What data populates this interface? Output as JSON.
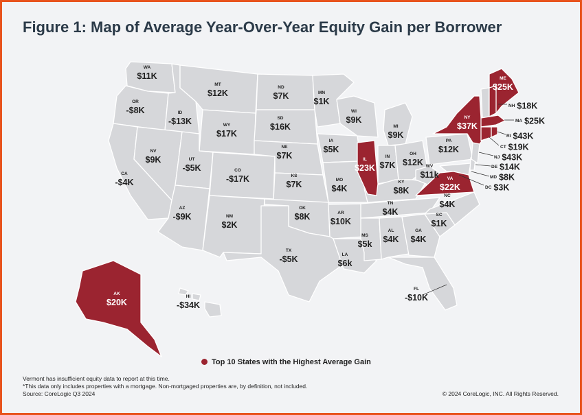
{
  "title": "Figure 1: Map of Average Year-Over-Year Equity Gain per Borrower",
  "colors": {
    "frame": "#e8531d",
    "state_fill": "#d6d7da",
    "highlight_fill": "#9b2430",
    "state_border": "#ffffff"
  },
  "legend": {
    "label": "Top 10 States with the Highest Average Gain"
  },
  "states": {
    "WA": {
      "abbr": "WA",
      "value": "$11K"
    },
    "OR": {
      "abbr": "OR",
      "value": "-$8K"
    },
    "CA": {
      "abbr": "CA",
      "value": "-$4K"
    },
    "ID": {
      "abbr": "ID",
      "value": "-$13K"
    },
    "NV": {
      "abbr": "NV",
      "value": "$9K"
    },
    "MT": {
      "abbr": "MT",
      "value": "$12K"
    },
    "WY": {
      "abbr": "WY",
      "value": "$17K"
    },
    "UT": {
      "abbr": "UT",
      "value": "-$5K"
    },
    "AZ": {
      "abbr": "AZ",
      "value": "-$9K"
    },
    "CO": {
      "abbr": "CO",
      "value": "-$17K"
    },
    "NM": {
      "abbr": "NM",
      "value": "$2K"
    },
    "ND": {
      "abbr": "ND",
      "value": "$7K"
    },
    "SD": {
      "abbr": "SD",
      "value": "$16K"
    },
    "NE": {
      "abbr": "NE",
      "value": "$7K"
    },
    "KS": {
      "abbr": "KS",
      "value": "$7K"
    },
    "OK": {
      "abbr": "OK",
      "value": "$8K"
    },
    "TX": {
      "abbr": "TX",
      "value": "-$5K"
    },
    "MN": {
      "abbr": "MN",
      "value": "$1K"
    },
    "IA": {
      "abbr": "IA",
      "value": "$5K"
    },
    "MO": {
      "abbr": "MO",
      "value": "$4K"
    },
    "AR": {
      "abbr": "AR",
      "value": "$10K"
    },
    "LA": {
      "abbr": "LA",
      "value": "$6k"
    },
    "WI": {
      "abbr": "WI",
      "value": "$9K"
    },
    "IL": {
      "abbr": "IL",
      "value": "$23K"
    },
    "MI": {
      "abbr": "MI",
      "value": "$9K"
    },
    "IN": {
      "abbr": "IN",
      "value": "$7K"
    },
    "OH": {
      "abbr": "OH",
      "value": "$12K"
    },
    "KY": {
      "abbr": "KY",
      "value": "$8K"
    },
    "TN": {
      "abbr": "TN",
      "value": "$4K"
    },
    "MS": {
      "abbr": "MS",
      "value": "$5k"
    },
    "AL": {
      "abbr": "AL",
      "value": "$4K"
    },
    "GA": {
      "abbr": "GA",
      "value": "$4K"
    },
    "FL": {
      "abbr": "FL",
      "value": "-$10K"
    },
    "SC": {
      "abbr": "SC",
      "value": "$1K"
    },
    "NC": {
      "abbr": "NC",
      "value": "$4K"
    },
    "VA": {
      "abbr": "VA",
      "value": "$22K"
    },
    "WV": {
      "abbr": "WV",
      "value": "$11k"
    },
    "PA": {
      "abbr": "PA",
      "value": "$12K"
    },
    "NY": {
      "abbr": "NY",
      "value": "$37K"
    },
    "ME": {
      "abbr": "ME",
      "value": "$25K"
    },
    "NH": {
      "abbr": "NH",
      "value": "$18K"
    },
    "MA": {
      "abbr": "MA",
      "value": "$25K"
    },
    "RI": {
      "abbr": "RI",
      "value": "$43K"
    },
    "CT": {
      "abbr": "CT",
      "value": "$19K"
    },
    "NJ": {
      "abbr": "NJ",
      "value": "$43K"
    },
    "DE": {
      "abbr": "DE",
      "value": "$14K"
    },
    "MD": {
      "abbr": "MD",
      "value": "$8K"
    },
    "DC": {
      "abbr": "DC",
      "value": "$3K"
    },
    "AK": {
      "abbr": "AK",
      "value": "$20K"
    },
    "HI": {
      "abbr": "HI",
      "value": "-$34K"
    }
  },
  "top10": [
    "NY",
    "ME",
    "MA",
    "RI",
    "CT",
    "NJ",
    "VA",
    "IL",
    "AK",
    "NH"
  ],
  "notes": {
    "line1": "Vermont has insufficient equity data to report at this time.",
    "line2": "*This data only includes properties with a mortgage. Non-mortgaged properties are, by definition, not included.",
    "line3": "Source: CoreLogic Q3 2024"
  },
  "copyright": "© 2024 CoreLogic, INC. All Rights Reserved."
}
